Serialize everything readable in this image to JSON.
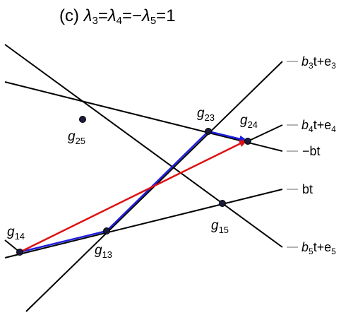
{
  "title": {
    "prefix": "(c) ",
    "lam": "λ",
    "s3": "3",
    "eq1": "=",
    "s4": "4",
    "eq2": "=−",
    "s5": "5",
    "tail": "=1"
  },
  "colors": {
    "line": "#000000",
    "blue": "#1f1fe0",
    "red": "#e01010",
    "tick": "#9a9a9a"
  },
  "points": [
    {
      "id": "g25",
      "letter": "g",
      "sub": "25"
    },
    {
      "id": "g23",
      "letter": "g",
      "sub": "23"
    },
    {
      "id": "g24",
      "letter": "g",
      "sub": "24"
    },
    {
      "id": "g15",
      "letter": "g",
      "sub": "15"
    },
    {
      "id": "g14",
      "letter": "g",
      "sub": "14"
    },
    {
      "id": "g13",
      "letter": "g",
      "sub": "13"
    }
  ],
  "line_labels": [
    {
      "id": "b3",
      "pre": "b",
      "sub": "3",
      "mid": "t+e",
      "sub2": "3"
    },
    {
      "id": "b4",
      "pre": "b",
      "sub": "4",
      "mid": "t+e",
      "sub2": "4"
    },
    {
      "id": "negbt",
      "text": "−bt"
    },
    {
      "id": "bt",
      "text": "bt"
    },
    {
      "id": "b5",
      "pre": "b",
      "sub": "5",
      "mid": "t+e",
      "sub2": "5"
    }
  ]
}
